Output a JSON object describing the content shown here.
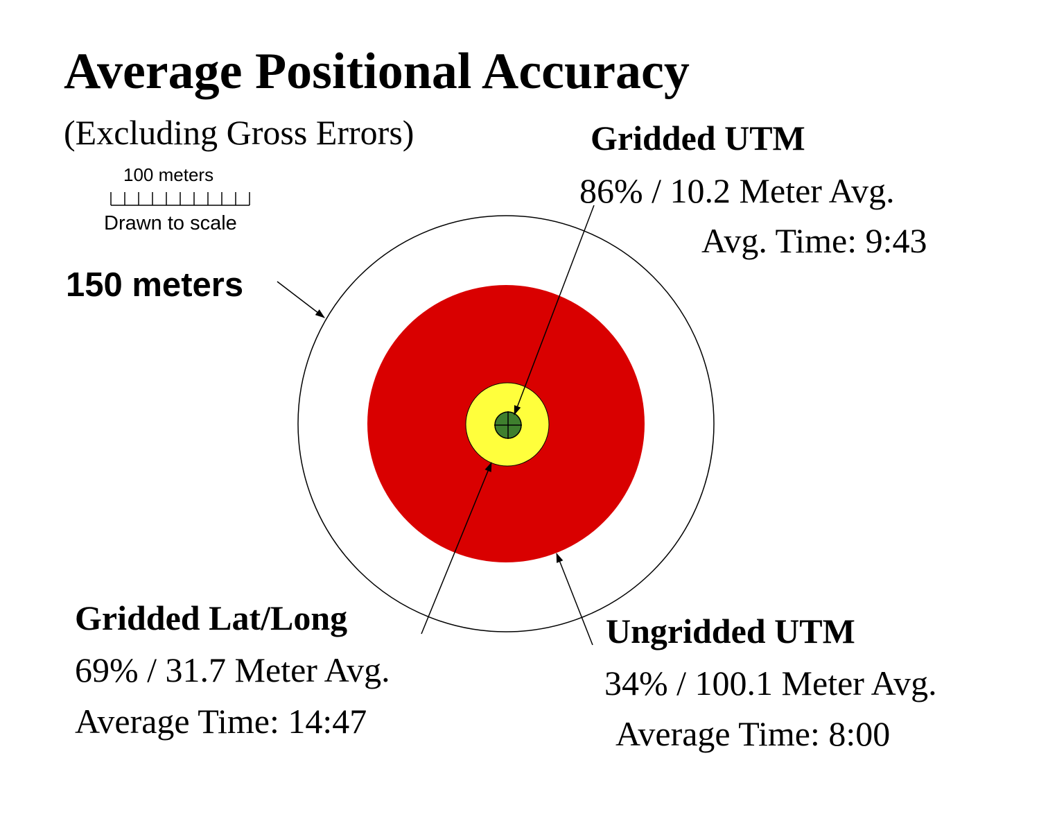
{
  "title": "Average Positional Accuracy",
  "subtitle": "(Excluding Gross Errors)",
  "scale_bar": {
    "length_label": "100 meters",
    "note": "Drawn to scale",
    "ticks": 10
  },
  "outer_ring_label": "150 meters",
  "rings": [
    {
      "name": "Ungridded UTM",
      "color": "#d90000"
    },
    {
      "name": "Gridded Lat/Long",
      "color": "#ffff3c"
    },
    {
      "name": "Gridded UTM",
      "color": "#3f7f2e"
    }
  ],
  "labels": {
    "gridded_utm": {
      "heading": "Gridded UTM",
      "stat": "86% / 10.2 Meter Avg.",
      "time": "Avg. Time:  9:43"
    },
    "gridded_latlong": {
      "heading": "Gridded Lat/Long",
      "stat": "69% / 31.7  Meter Avg.",
      "time": "Average Time: 14:47"
    },
    "ungridded_utm": {
      "heading": "Ungridded UTM",
      "stat": "34% / 100.1 Meter Avg.",
      "time": "Average Time: 8:00"
    }
  }
}
